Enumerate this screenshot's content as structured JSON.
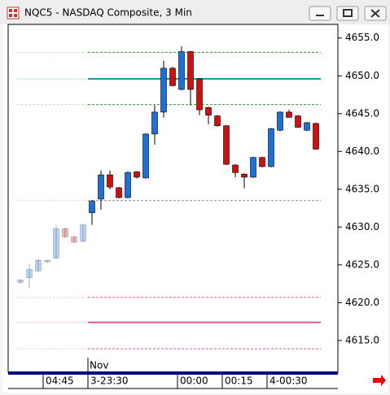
{
  "chart_data": {
    "type": "candlestick",
    "title": "NQC5 - NASDAQ Composite, 3 Min",
    "open": [
      4622.7,
      4623.3,
      4624.2,
      4625.4,
      4625.9,
      4629.8,
      4628.7,
      4628.1,
      4631.9,
      4633.7,
      4636.9,
      4635.2,
      4633.9,
      4637.3,
      4636.5,
      4642.3,
      4645.2,
      4651.0,
      4648.2,
      4653.2,
      4649.6,
      4645.8,
      4644.7,
      4643.4,
      4638.2,
      4637.0,
      4636.6,
      4639.2,
      4638.0,
      4642.8,
      4645.2,
      4644.7,
      4642.8,
      4643.7
    ],
    "high": [
      4623.1,
      4625.1,
      4625.8,
      4625.6,
      4630.3,
      4629.9,
      4628.8,
      4630.3,
      4633.6,
      4637.5,
      4637.5,
      4635.3,
      4637.4,
      4637.4,
      4642.4,
      4646.1,
      4652.0,
      4651.2,
      4653.9,
      4653.3,
      4649.7,
      4645.9,
      4644.8,
      4643.5,
      4638.3,
      4637.1,
      4639.3,
      4639.3,
      4643.1,
      4645.3,
      4645.5,
      4644.8,
      4643.9,
      4643.8
    ],
    "low": [
      4622.5,
      4621.9,
      4624.1,
      4625.3,
      4625.8,
      4628.6,
      4627.9,
      4628.0,
      4630.3,
      4632.3,
      4635.0,
      4633.8,
      4633.8,
      4636.4,
      4636.4,
      4640.9,
      4644.5,
      4648.6,
      4648.1,
      4646.1,
      4644.8,
      4643.6,
      4643.3,
      4638.2,
      4636.6,
      4635.1,
      4636.5,
      4637.9,
      4637.9,
      4642.7,
      4644.6,
      4643.1,
      4642.7,
      4640.3
    ],
    "close": [
      4623.0,
      4624.4,
      4625.6,
      4625.6,
      4629.8,
      4628.7,
      4628.0,
      4630.3,
      4633.4,
      4636.9,
      4635.3,
      4633.9,
      4637.2,
      4636.6,
      4642.3,
      4645.2,
      4651.0,
      4648.7,
      4653.2,
      4648.2,
      4645.5,
      4644.8,
      4643.4,
      4638.3,
      4637.2,
      4636.6,
      4639.2,
      4638.0,
      4643.0,
      4645.2,
      4644.5,
      4643.2,
      4643.8,
      4640.3
    ],
    "up_color": "#1f6fd6",
    "down_color": "#d01010",
    "session_start_index": 8,
    "levels": [
      {
        "value": 4653.1,
        "color": "#2ca02c",
        "style": "dashed"
      },
      {
        "value": 4649.6,
        "color": "#1a9a9a",
        "style": "solid"
      },
      {
        "value": 4646.2,
        "color": "#2ca02c",
        "style": "dashed"
      },
      {
        "value": 4633.5,
        "color": "#888888",
        "style": "dashed"
      },
      {
        "value": 4620.7,
        "color": "#e0589a",
        "style": "dashed"
      },
      {
        "value": 4617.4,
        "color": "#e0589a",
        "style": "solid"
      },
      {
        "value": 4613.9,
        "color": "#e0589a",
        "style": "dashed"
      }
    ],
    "ylim": [
      4610.8,
      4656.8
    ],
    "yticks": [
      {
        "value": 4615,
        "label": "4615.0"
      },
      {
        "value": 4620,
        "label": "4620.0"
      },
      {
        "value": 4625,
        "label": "4625.0"
      },
      {
        "value": 4630,
        "label": "4630.0"
      },
      {
        "value": 4635,
        "label": "4635.0"
      },
      {
        "value": 4640,
        "label": "4640.0"
      },
      {
        "value": 4645,
        "label": "4645.0"
      },
      {
        "value": 4650,
        "label": "4650.0"
      },
      {
        "value": 4655,
        "label": "4655.0"
      }
    ],
    "xticks": [
      {
        "value": 3,
        "label": "04:45"
      },
      {
        "value": 8,
        "label": "3-23:30"
      },
      {
        "value": 18,
        "label": "00:00"
      },
      {
        "value": 23,
        "label": "00:15"
      },
      {
        "value": 28,
        "label": "4-00:30"
      }
    ],
    "month_label": {
      "value": 8,
      "label": "Nov"
    }
  }
}
